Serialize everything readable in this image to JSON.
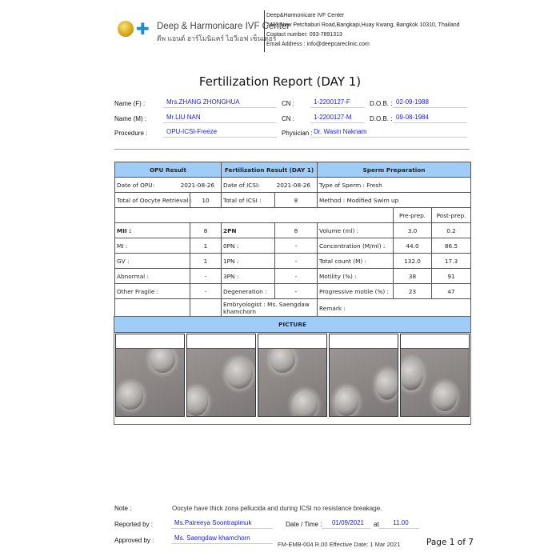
{
  "header": {
    "brand_en": "Deep & Harmonicare IVF Center",
    "brand_th": "ดีพ แอนด์ ฮาร์โมนิแคร์ ไอวีเอฟ เซ็นเตอร์",
    "clinic_name": "Deep&Harmonicare IVF Center",
    "address": "2483 New Petchaburi Road,Bangkapi,Huay Kwang, Bangkok 10310, Thailand",
    "contact": "Contact number: 093-7891313",
    "email": "Email Address : info@deepcareclinic.com"
  },
  "title": "Fertilization Report (DAY 1)",
  "patient": {
    "name_f_label": "Name (F) :",
    "name_f": "Mrs.ZHANG ZHONGHUA",
    "cn_label": "CN :",
    "cn_f": "1-2200127-F",
    "dob_label": "D.O.B. :",
    "dob_f": "02-09-1988",
    "name_m_label": "Name (M) :",
    "name_m": "Mr.LIU NAN",
    "cn_m": "1-2200127-M",
    "dob_m": "09-08-1984",
    "procedure_label": "Procedure :",
    "procedure": "OPU-ICSI-Freeze",
    "physician_label": "Physician :",
    "physician": "Dr. Wasin Naknam"
  },
  "table": {
    "h_opu": "OPU Result",
    "h_fert": "Fertilization Result (DAY 1)",
    "h_sperm": "Sperm Preparation",
    "date_opu_label": "Date of OPU:",
    "date_opu": "2021-08-26",
    "date_icsi_label": "Date of ICSI:",
    "date_icsi": "2021-08-26",
    "sperm_type": "Type of Sperm :   Fresh",
    "oocyte_label": "Total of Oocyte Retrieval :",
    "oocyte": "10",
    "icsi_label": "Total of ICSI :",
    "icsi": "8",
    "method": "Method :  Modified Swim up",
    "pre": "Pre-prep.",
    "post": "Post-prep.",
    "rows": [
      {
        "a": "MII :",
        "av": "8",
        "b": "2PN",
        "bv": "8",
        "c": "Volume (ml) :",
        "pre": "3.0",
        "post": "0.2"
      },
      {
        "a": "MI :",
        "av": "1",
        "b": "0PN :",
        "bv": "-",
        "c": "Concentration (M/ml) :",
        "pre": "44.0",
        "post": "86.5"
      },
      {
        "a": "GV :",
        "av": "1",
        "b": "1PN :",
        "bv": "-",
        "c": "Total count (M) :",
        "pre": "132.0",
        "post": "17.3"
      },
      {
        "a": "Abnormal :",
        "av": "-",
        "b": "3PN :",
        "bv": "-",
        "c": "Motility (%) :",
        "pre": "38",
        "post": "91"
      },
      {
        "a": "Other Fragile :",
        "av": "-",
        "b": "Degeneration :",
        "bv": "-",
        "c": "Progressive motile (%) :",
        "pre": "23",
        "post": "47"
      }
    ],
    "embryologist_1": "Embryologist : Ms. Saengdaw",
    "embryologist_2": "khamchorn",
    "remark": "Remark :",
    "picture": "PICTURE"
  },
  "footer": {
    "note_label": "Note :",
    "note": "Oocyte have thick zona pellucida and during ICSI no resistance breakage.",
    "reported_label": "Reported by :",
    "reported": "Ms.Patreeya Soontrapimuk",
    "datetime_label": "Date / Time :",
    "date": "01/09/2021",
    "at": "at",
    "time": "11.00",
    "approved_label": "Approved by :",
    "approved": "Ms. Saengdaw khamchorn",
    "form": "FM-EMB-004 R.00 Effective Date: 1 Mar 2021",
    "page": "Page 1 of 7"
  }
}
